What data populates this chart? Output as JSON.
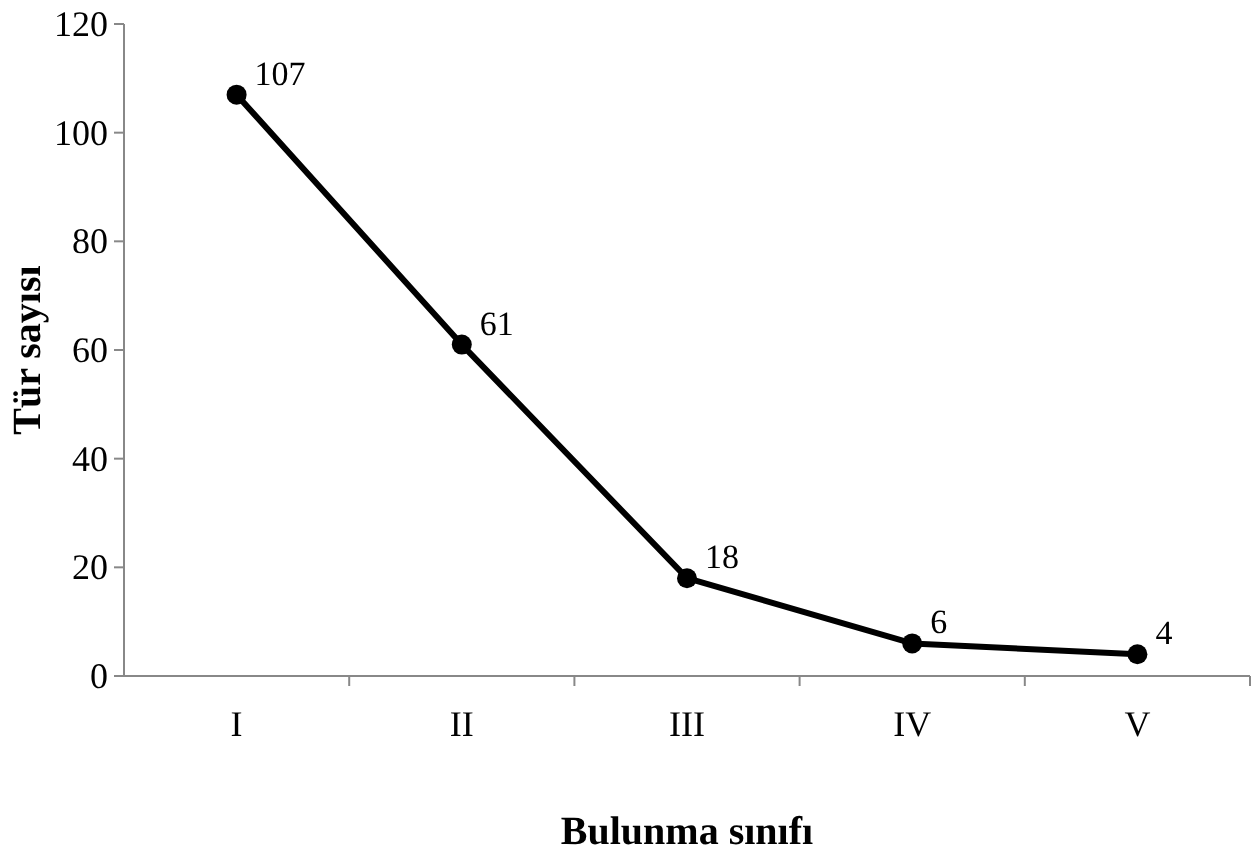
{
  "chart_data": {
    "type": "line",
    "xlabel": "Bulunma sınıfı",
    "ylabel": "Tür sayısı",
    "categories": [
      "I",
      "II",
      "III",
      "IV",
      "V"
    ],
    "series": [
      {
        "color": "#000000",
        "values": [
          107,
          61,
          18,
          6,
          4
        ]
      }
    ],
    "ylim": [
      0,
      120
    ],
    "yticks": [
      0,
      20,
      40,
      60,
      80,
      100,
      120
    ],
    "grid": false,
    "marker": "circle",
    "line_style": "solid",
    "data_labels": true
  }
}
